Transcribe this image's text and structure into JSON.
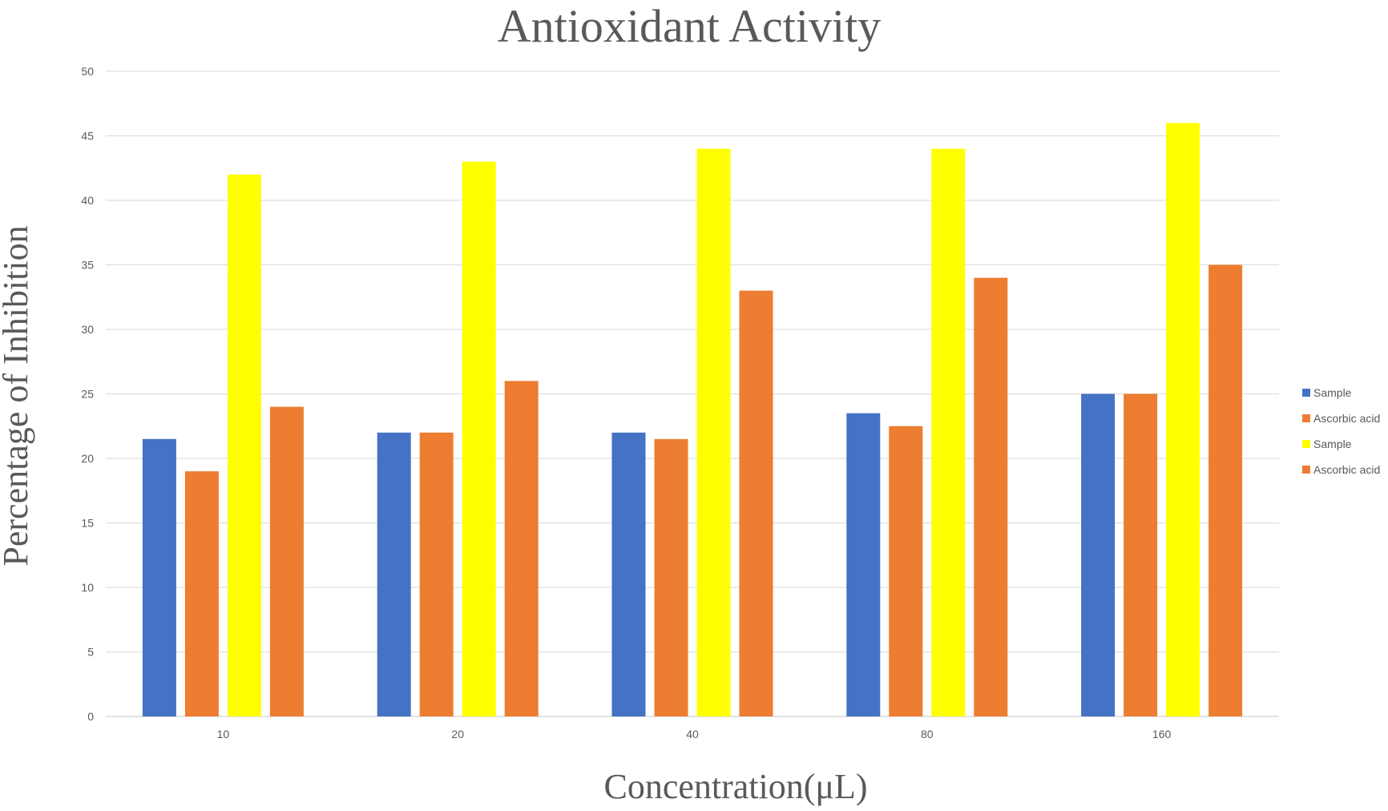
{
  "chart_data": {
    "type": "bar",
    "title": "Antioxidant Activity",
    "xlabel": "Concentration(μL)",
    "ylabel": "Percentage of Inhibition",
    "categories": [
      "10",
      "20",
      "40",
      "80",
      "160"
    ],
    "ylim": [
      0,
      50
    ],
    "yticks": [
      "0",
      "5",
      "10",
      "15",
      "20",
      "25",
      "30",
      "35",
      "40",
      "45",
      "50"
    ],
    "grid": "horizontal",
    "legend_position": "right",
    "series": [
      {
        "name": "Sample",
        "color": "#4472C4",
        "values": [
          21.5,
          22,
          22,
          23.5,
          25
        ]
      },
      {
        "name": "Ascorbic acid",
        "color": "#ED7D31",
        "values": [
          19,
          22,
          21.5,
          22.5,
          25
        ]
      },
      {
        "name": "Sample",
        "color": "#FFFF00",
        "values": [
          42,
          43,
          44,
          44,
          46
        ]
      },
      {
        "name": "Ascorbic acid",
        "color": "#ED7D31",
        "values": [
          24,
          26,
          33,
          34,
          35
        ]
      }
    ]
  }
}
